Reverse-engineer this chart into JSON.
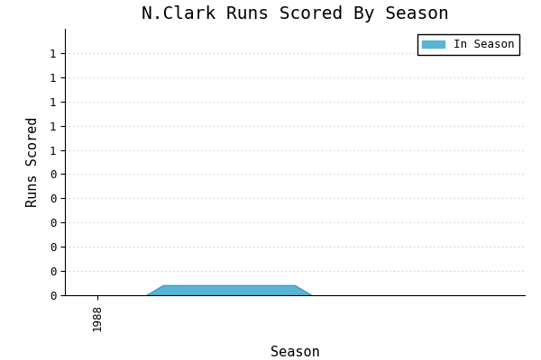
{
  "title": "N.Clark Runs Scored By Season",
  "xlabel": "Season",
  "ylabel": "Runs Scored",
  "legend_label": "In Season",
  "bar_color": "#5ab4d4",
  "bar_edge_color": "#3a94b4",
  "background_color": "#ffffff",
  "grid_color": "#bbbbbb",
  "seasons_fill": [
    1989.5,
    1990,
    1991,
    1992,
    1992.5,
    1993,
    1994,
    1994.5
  ],
  "runs_fill": [
    0.0,
    0.04,
    0.04,
    0.04,
    0.04,
    0.04,
    0.04,
    0.0
  ],
  "ylim": [
    0.0,
    1.1
  ],
  "ytick_vals": [
    0.0,
    0.1,
    0.2,
    0.3,
    0.4,
    0.5,
    0.6,
    0.7,
    0.8,
    0.9,
    1.0
  ],
  "xlim_left": 1987.0,
  "xlim_right": 2001.0,
  "xtick_pos": 1988,
  "font_family": "monospace",
  "title_fontsize": 14,
  "label_fontsize": 11,
  "tick_fontsize": 9
}
